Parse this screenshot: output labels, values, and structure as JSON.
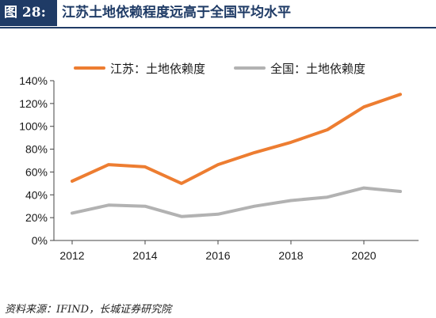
{
  "header": {
    "figure_label": "图 28:",
    "title": "江苏土地依赖程度远高于全国平均水平"
  },
  "source": "资料来源：IFIND，长城证券研究院",
  "chart_data": {
    "type": "line",
    "title": "江苏土地依赖程度远高于全国平均水平",
    "xlabel": "",
    "ylabel": "",
    "x": [
      2012,
      2013,
      2014,
      2015,
      2016,
      2017,
      2018,
      2019,
      2020,
      2021
    ],
    "xticks": [
      2012,
      2014,
      2016,
      2018,
      2020
    ],
    "xticklabels": [
      "2012",
      "2014",
      "2016",
      "2018",
      "2020"
    ],
    "ylim": [
      0,
      1.4
    ],
    "yticks": [
      0,
      0.2,
      0.4,
      0.6,
      0.8,
      1.0,
      1.2,
      1.4
    ],
    "yticklabels": [
      "0%",
      "20%",
      "40%",
      "60%",
      "80%",
      "100%",
      "120%",
      "140%"
    ],
    "grid": false,
    "legend_position": "top",
    "series": [
      {
        "name": "江苏：土地依赖度",
        "color": "#ed7d31",
        "values": [
          0.52,
          0.665,
          0.645,
          0.5,
          0.665,
          0.77,
          0.86,
          0.97,
          1.17,
          1.28
        ]
      },
      {
        "name": "全国：土地依赖度",
        "color": "#b2b2b2",
        "values": [
          0.24,
          0.31,
          0.3,
          0.21,
          0.23,
          0.3,
          0.35,
          0.38,
          0.46,
          0.43
        ]
      }
    ]
  }
}
